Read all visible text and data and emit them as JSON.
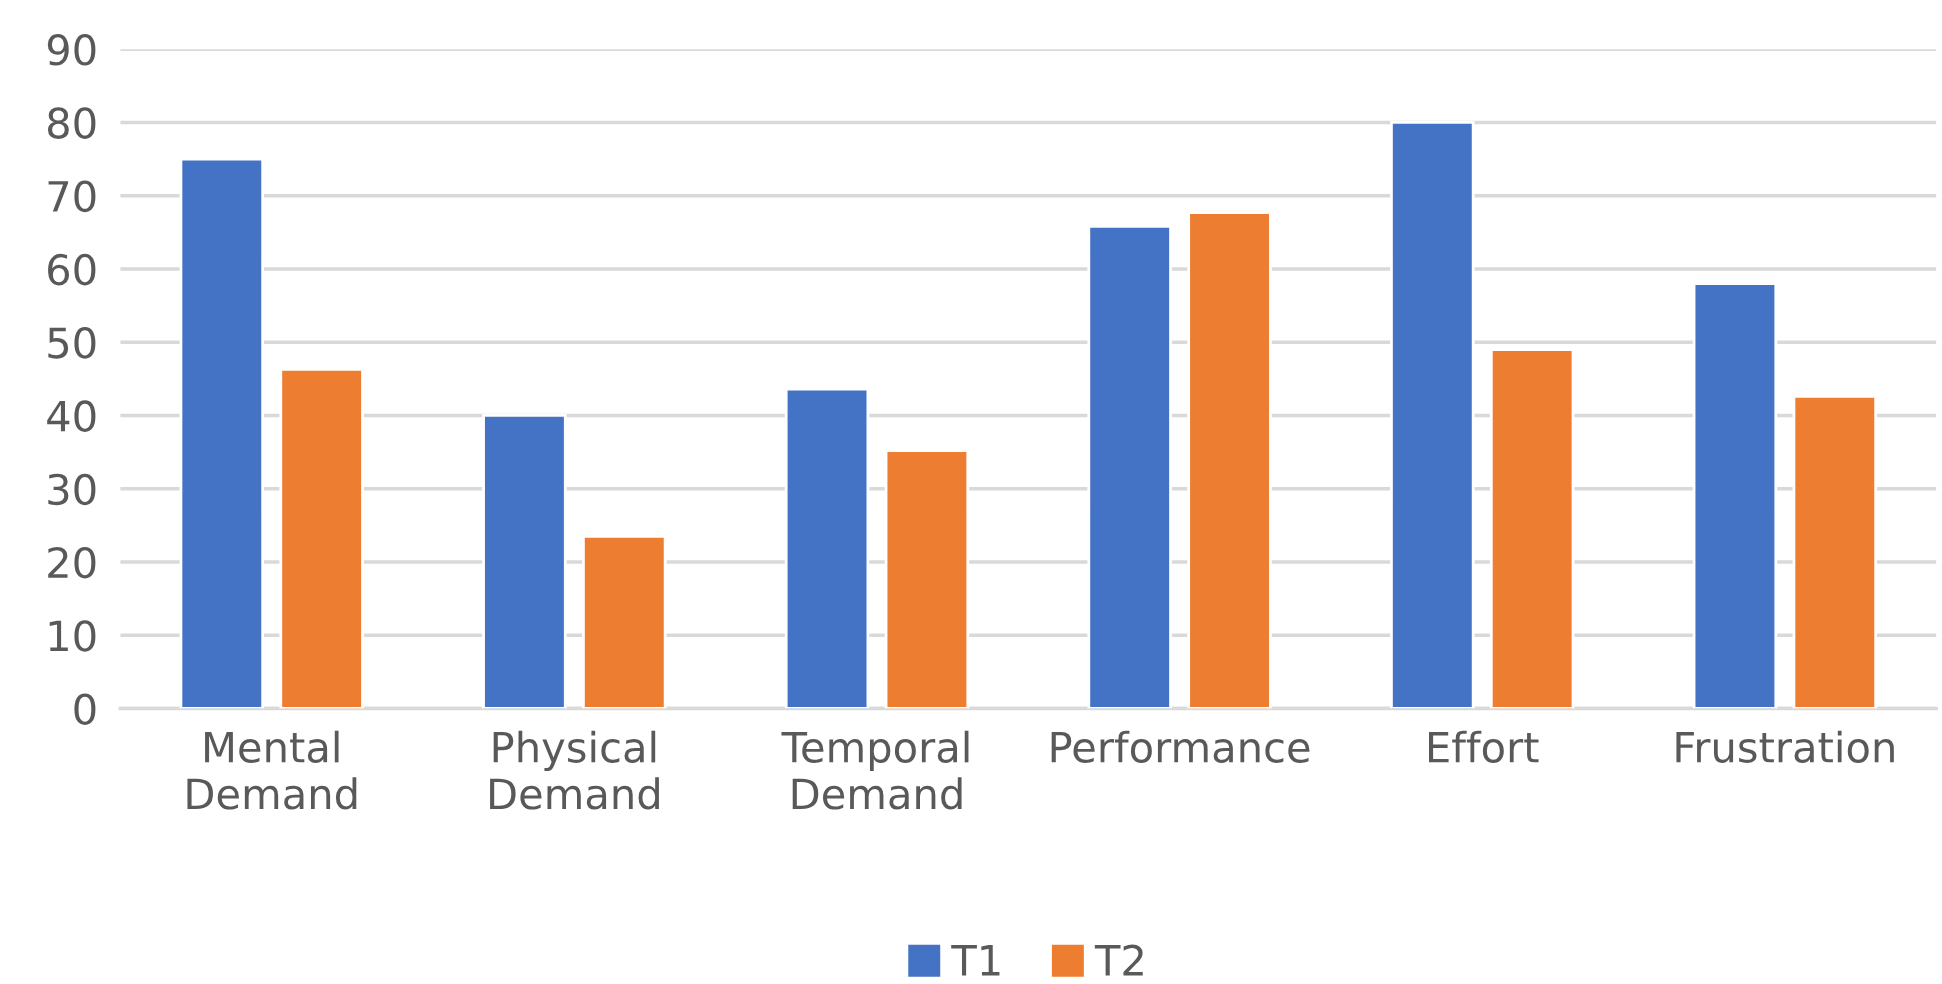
{
  "chart_data": {
    "type": "bar",
    "categories": [
      "Mental\nDemand",
      "Physical\nDemand",
      "Temporal\nDemand",
      "Performance",
      "Effort",
      "Frustration"
    ],
    "series": [
      {
        "name": "T1",
        "color": "#4472c4",
        "values": [
          75,
          40,
          43.6,
          65.8,
          80,
          58
        ]
      },
      {
        "name": "T2",
        "color": "#ed7d31",
        "values": [
          46.3,
          23.5,
          35.2,
          67.7,
          49,
          42.6
        ]
      }
    ],
    "ylim": [
      0,
      90
    ],
    "yticks": [
      0,
      10,
      20,
      30,
      40,
      50,
      60,
      70,
      80,
      90
    ],
    "grid": "y",
    "legend": "bottom"
  }
}
